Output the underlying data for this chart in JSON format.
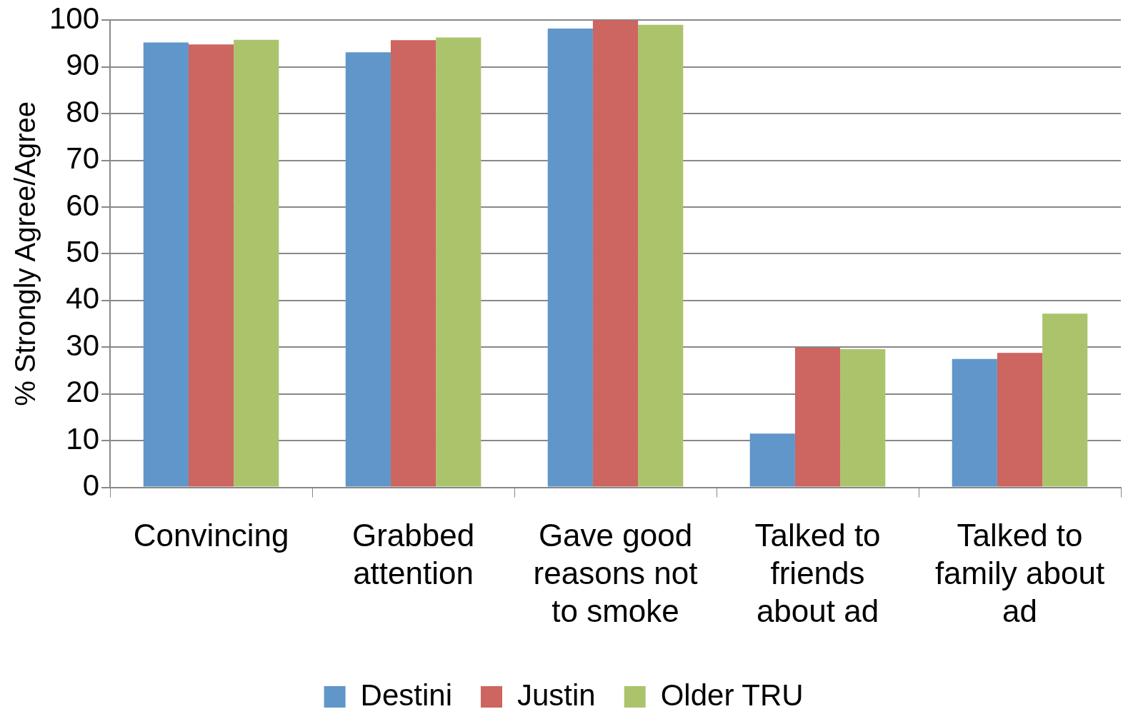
{
  "chart_data": {
    "type": "bar",
    "ylabel": "% Strongly Agree/Agree",
    "categories": [
      "Convincing",
      "Grabbed attention",
      "Gave good reasons not to smoke",
      "Talked to friends about ad",
      "Talked to family about ad"
    ],
    "series": [
      {
        "name": "Destini",
        "color": "#6096c9",
        "values": [
          95.2,
          93.1,
          98.2,
          11.5,
          27.5
        ]
      },
      {
        "name": "Justin",
        "color": "#cd6560",
        "values": [
          94.8,
          95.7,
          100,
          29.9,
          28.8
        ]
      },
      {
        "name": "Older TRU",
        "color": "#abc46c",
        "values": [
          95.8,
          96.3,
          99.0,
          29.6,
          37.2
        ]
      }
    ],
    "ylim": [
      0,
      100
    ],
    "yticks": [
      0,
      10,
      20,
      30,
      40,
      50,
      60,
      70,
      80,
      90,
      100
    ],
    "grid": "y",
    "legend": "bottom"
  }
}
